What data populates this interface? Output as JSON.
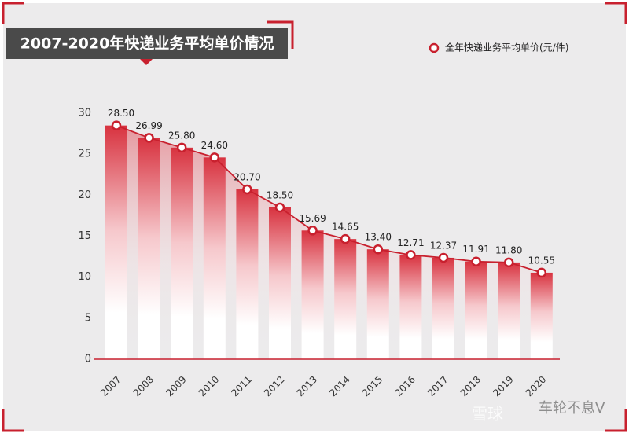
{
  "chart_data": {
    "type": "line",
    "title": "2007-2020年快递业务平均单价情况",
    "categories": [
      "2007",
      "2008",
      "2009",
      "2010",
      "2011",
      "2012",
      "2013",
      "2014",
      "2015",
      "2016",
      "2017",
      "2018",
      "2019",
      "2020"
    ],
    "series": [
      {
        "name": "全年快递业务平均单价(元/件)",
        "color": "#c8202e",
        "values": [
          28.5,
          26.99,
          25.8,
          24.6,
          20.7,
          18.5,
          15.69,
          14.65,
          13.4,
          12.71,
          12.37,
          11.91,
          11.8,
          10.55
        ],
        "value_labels": [
          "28.50",
          "26.99",
          "25.80",
          "24.60",
          "20.70",
          "18.50",
          "15.69",
          "14.65",
          "13.40",
          "12.71",
          "12.37",
          "11.91",
          "11.80",
          "10.55"
        ]
      }
    ],
    "ylim": [
      0,
      30
    ],
    "yticks": [
      0,
      5,
      10,
      15,
      20,
      25,
      30
    ],
    "legend": "top-right",
    "watermark": "雪球",
    "watermark_author": "车轮不息V"
  }
}
